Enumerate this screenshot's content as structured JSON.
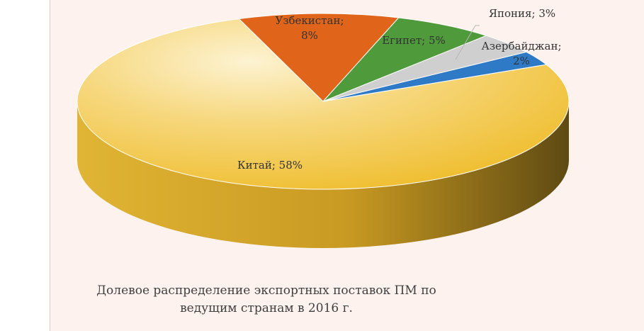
{
  "chart_data": {
    "type": "pie",
    "title_lines": [
      "Долевое распределение экспортных поставок ПМ по",
      "ведущим странам в 2016 г."
    ],
    "slices": [
      {
        "name": "Китай",
        "value": 58,
        "label_lines": [
          "Китай; 58%"
        ],
        "color": "#f0c23a"
      },
      {
        "name": "Узбекистан",
        "value": 8,
        "label_lines": [
          "Узбекистан;",
          "8%"
        ],
        "color": "#e0651a"
      },
      {
        "name": "Египет",
        "value": 5,
        "label_lines": [
          "Египет; 5%"
        ],
        "color": "#4f9a3a"
      },
      {
        "name": "Япония",
        "value": 3,
        "label_lines": [
          "Япония; 3%"
        ],
        "color": "#cfcfcf"
      },
      {
        "name": "Азербайджан",
        "value": 2,
        "label_lines": [
          "Азербайджан;",
          "2%"
        ],
        "color": "#2f7ac6"
      }
    ],
    "legend": "none",
    "style": "3d"
  }
}
